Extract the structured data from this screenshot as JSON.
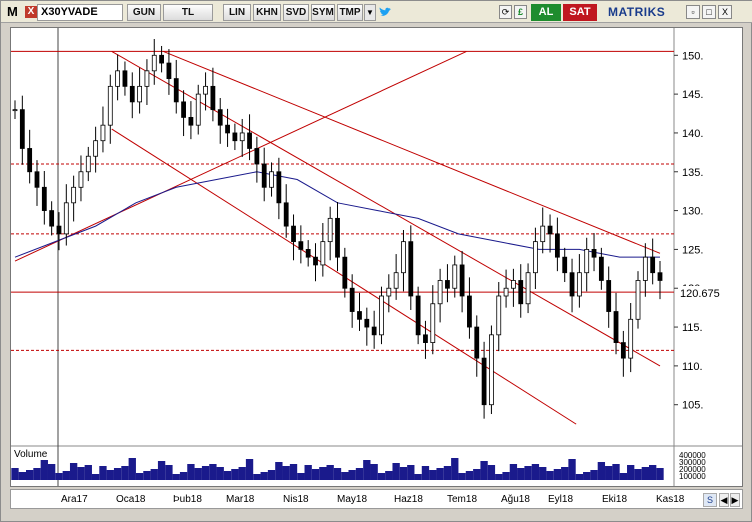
{
  "toolbar": {
    "app_icon": "M",
    "close_glyph": "X",
    "symbol": "X30YVADE",
    "buttons": [
      "GUN",
      "TL",
      "LIN",
      "KHN",
      "SVD",
      "SYM",
      "TMP"
    ],
    "dropdown_glyph": "▼",
    "twitter_icon": "twitter-bird-icon",
    "extra_icons": [
      "refresh-icon",
      "currency-icon",
      "flag-icon"
    ],
    "buy_label": "AL",
    "sell_label": "SAT",
    "brand": "MATRIKS",
    "window_controls": [
      "▫",
      "□",
      "X"
    ]
  },
  "chart": {
    "y_ticks": [
      "150.",
      "145.",
      "140.",
      "135.",
      "130.",
      "125.",
      "120.",
      "115.",
      "110.",
      "105."
    ],
    "last_price": "120.675",
    "volume_label": "Volume",
    "volume_ticks": [
      "400000",
      "300000",
      "200000",
      "100000"
    ],
    "x_labels": [
      "Ara17",
      "Oca18",
      "Þub18",
      "Mar18",
      "Nis18",
      "May18",
      "Haz18",
      "Tem18",
      "Ağu18",
      "Eyl18",
      "Eki18",
      "Kas18"
    ],
    "colors": {
      "candles": "#000000",
      "ma": "#1a1a8c",
      "trend": "#c00000",
      "volume": "#1a1a8c"
    }
  },
  "chart_data": {
    "type": "candlestick",
    "symbol": "X30YVADE",
    "ylim": [
      102,
      153
    ],
    "y_ticks": [
      150,
      145,
      140,
      135,
      130,
      125,
      120,
      115,
      110,
      105
    ],
    "x_labels": [
      "Ara17",
      "Oca18",
      "Þub18",
      "Mar18",
      "Nis18",
      "May18",
      "Haz18",
      "Tem18",
      "Ağu18",
      "Eyl18",
      "Eki18",
      "Kas18"
    ],
    "close_series": [
      143,
      138,
      135,
      133,
      130,
      128,
      127,
      131,
      133,
      135,
      137,
      139,
      141,
      146,
      148,
      146,
      144,
      146,
      148,
      150,
      149,
      147,
      144,
      142,
      141,
      145,
      146,
      143,
      141,
      140,
      139,
      140,
      138,
      136,
      133,
      135,
      131,
      128,
      126,
      125,
      124,
      123,
      126,
      129,
      124,
      120,
      117,
      116,
      115,
      114,
      119,
      120,
      122,
      126,
      119,
      114,
      113,
      118,
      121,
      120,
      123,
      119,
      115,
      111,
      105,
      114,
      119,
      120,
      121,
      118,
      122,
      126,
      128,
      127,
      124,
      122,
      119,
      122,
      125,
      124,
      121,
      117,
      113,
      111,
      116,
      121,
      124,
      122,
      121
    ],
    "moving_average": [
      124,
      126,
      128,
      131,
      133,
      134,
      135,
      134,
      131,
      130,
      129,
      127,
      126,
      125,
      125,
      124,
      124
    ],
    "horizontal_levels": [
      150.5,
      136,
      127,
      119.5,
      112
    ],
    "last_price": 120.675,
    "volume_ticks": [
      400000,
      300000,
      200000,
      100000
    ]
  }
}
